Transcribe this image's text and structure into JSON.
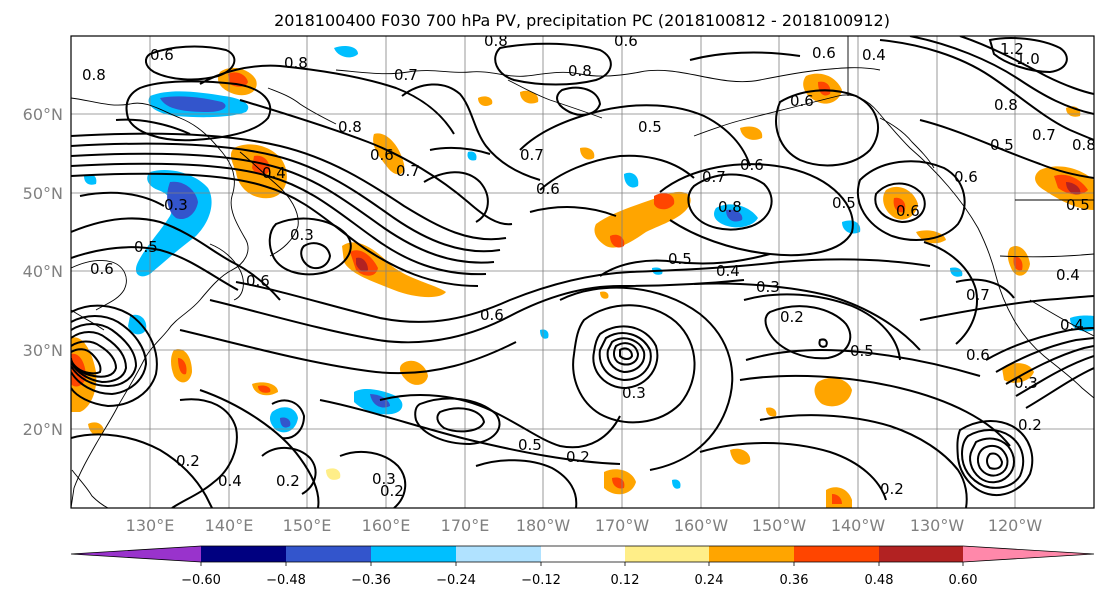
{
  "title": "2018100400 F030 700 hPa PV, precipitation PC (2018100812 - 2018100912)",
  "lat_labels": [
    "60°N",
    "50°N",
    "40°N",
    "30°N",
    "20°N"
  ],
  "lon_labels": [
    "130°E",
    "140°E",
    "150°E",
    "160°E",
    "170°E",
    "180°W",
    "170°W",
    "160°W",
    "150°W",
    "140°W",
    "130°W",
    "120°W"
  ],
  "colorbar": {
    "tick_labels": [
      "−0.60",
      "−0.48",
      "−0.36",
      "−0.24",
      "−0.12",
      "0.12",
      "0.24",
      "0.36",
      "0.48",
      "0.60"
    ],
    "colors": [
      "#9933cc",
      "#000080",
      "#3355cc",
      "#00bfff",
      "#b0e2ff",
      "#ffffff",
      "#ffee88",
      "#ffa500",
      "#ff4500",
      "#b22222",
      "#ff88aa"
    ]
  },
  "contour_labels": [
    "0.6",
    "0.8",
    "0.8",
    "0.6",
    "0.6",
    "0.4",
    "1.2",
    "1.0",
    "0.8",
    "0.7",
    "0.8",
    "0.8",
    "0.6",
    "0.7",
    "0.5",
    "0.8",
    "0.7",
    "0.5",
    "0.8",
    "0.6",
    "0.7",
    "0.6",
    "0.6",
    "0.7",
    "0.6",
    "0.4",
    "0.3",
    "0.5",
    "0.8",
    "0.5",
    "0.3",
    "0.5",
    "0.6",
    "0.6",
    "0.5",
    "0.4",
    "0.3",
    "0.2",
    "0.6",
    "0.7",
    "0.4",
    "0.6",
    "0.5",
    "0.6",
    "0.3",
    "0.2",
    "0.4",
    "0.2",
    "0.3",
    "0.2",
    "0.5",
    "0.2",
    "0.2",
    "0.3",
    "0.2",
    "0.4"
  ]
}
